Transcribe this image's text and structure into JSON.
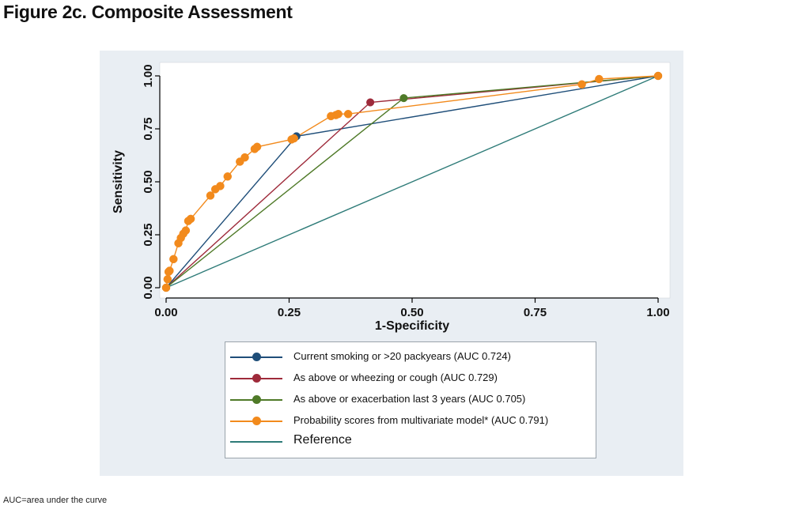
{
  "figure": {
    "title": "Figure 2c. Composite Assessment",
    "footnote": "AUC=area under the curve"
  },
  "colors": {
    "smoking": "#1f4e79",
    "wheezing": "#9e2a3a",
    "exacerbation": "#4f7a28",
    "probability": "#f28a1c",
    "reference": "#2e7b78",
    "plot_background": "#e9eef3",
    "chart_background": "#ffffff"
  },
  "chart_data": {
    "type": "line",
    "title": "",
    "xlabel": "1-Specificity",
    "ylabel": "Sensitivity",
    "xlim": [
      0,
      1
    ],
    "ylim": [
      0,
      1
    ],
    "xticks": [
      "0.00",
      "0.25",
      "0.50",
      "0.75",
      "1.00"
    ],
    "yticks": [
      "0.00",
      "0.25",
      "0.50",
      "0.75",
      "1.00"
    ],
    "grid": false,
    "legend_position": "bottom",
    "series": [
      {
        "name": "Current smoking or >20 packyears (AUC 0.724)",
        "color_key": "smoking",
        "markers": true,
        "x": [
          0,
          0.265,
          1
        ],
        "y": [
          0,
          0.715,
          1
        ]
      },
      {
        "name": "As above or wheezing or cough (AUC 0.729)",
        "color_key": "wheezing",
        "markers": true,
        "x": [
          0,
          0.415,
          1
        ],
        "y": [
          0,
          0.875,
          1
        ]
      },
      {
        "name": "As above or exacerbation last 3 years (AUC 0.705)",
        "color_key": "exacerbation",
        "markers": true,
        "x": [
          0,
          0.483,
          1
        ],
        "y": [
          0,
          0.895,
          1
        ]
      },
      {
        "name": "Probability scores from multivariate model* (AUC 0.791)",
        "color_key": "probability",
        "markers": true,
        "x": [
          0,
          0.003,
          0.005,
          0.007,
          0.015,
          0.025,
          0.03,
          0.035,
          0.04,
          0.045,
          0.05,
          0.09,
          0.1,
          0.11,
          0.125,
          0.15,
          0.16,
          0.18,
          0.185,
          0.255,
          0.26,
          0.335,
          0.345,
          0.35,
          0.37,
          0.845,
          0.88,
          1
        ],
        "y": [
          0,
          0.04,
          0.075,
          0.08,
          0.135,
          0.21,
          0.235,
          0.255,
          0.27,
          0.315,
          0.325,
          0.435,
          0.465,
          0.48,
          0.525,
          0.595,
          0.615,
          0.655,
          0.665,
          0.7,
          0.705,
          0.81,
          0.815,
          0.82,
          0.82,
          0.96,
          0.985,
          1
        ]
      },
      {
        "name": "Reference",
        "color_key": "reference",
        "markers": false,
        "x": [
          0,
          1
        ],
        "y": [
          0,
          1
        ]
      }
    ]
  }
}
